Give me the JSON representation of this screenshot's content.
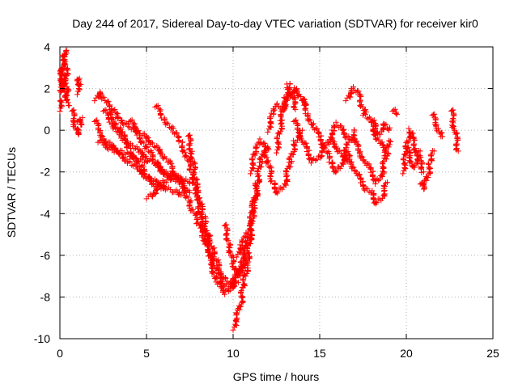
{
  "chart_data": {
    "type": "scatter",
    "title": "Day 244 of 2017, Sidereal Day-to-day VTEC variation (SDTVAR) for receiver kir0",
    "xlabel": "GPS time / hours",
    "ylabel": "SDTVAR / TECUs",
    "xlim": [
      0,
      25
    ],
    "ylim": [
      -10,
      4
    ],
    "xticks": [
      0,
      5,
      10,
      15,
      20,
      25
    ],
    "yticks": [
      -10,
      -8,
      -6,
      -4,
      -2,
      0,
      2,
      4
    ],
    "grid": true,
    "marker": "+",
    "color": "#ff0000",
    "series": [
      {
        "name": "SDTVAR",
        "tracks": [
          {
            "x": [
              0.0,
              0.1,
              0.2,
              0.3,
              0.35,
              0.4,
              0.5
            ],
            "y": [
              1.0,
              2.5,
              3.5,
              3.8,
              3.2,
              2.0,
              1.2
            ]
          },
          {
            "x": [
              0.0,
              0.1,
              0.2,
              0.3,
              0.4
            ],
            "y": [
              2.0,
              3.0,
              2.8,
              1.8,
              1.5
            ]
          },
          {
            "x": [
              0.7,
              0.8,
              0.9,
              1.0,
              1.1
            ],
            "y": [
              1.0,
              0.5,
              0.2,
              -0.2,
              0.0
            ]
          },
          {
            "x": [
              1.0,
              1.1,
              1.2
            ],
            "y": [
              1.8,
              2.5,
              2.2
            ]
          },
          {
            "x": [
              1.0,
              1.2,
              1.3
            ],
            "y": [
              0.5,
              0.3,
              0.6
            ]
          },
          {
            "x": [
              2.0,
              2.3,
              2.6,
              2.9,
              3.2,
              3.6,
              4.0,
              4.5,
              5.0,
              5.5,
              6.0,
              6.5,
              7.0,
              7.5
            ],
            "y": [
              1.5,
              1.8,
              1.5,
              1.0,
              0.3,
              -0.2,
              -0.6,
              -1.0,
              -1.3,
              -1.6,
              -2.0,
              -2.3,
              -2.6,
              -3.0
            ]
          },
          {
            "x": [
              2.0,
              2.3,
              2.6,
              3.0,
              3.5,
              4.0,
              4.5,
              5.0
            ],
            "y": [
              0.5,
              0.0,
              -0.5,
              -0.8,
              -1.0,
              -1.2,
              -1.4,
              -1.5
            ]
          },
          {
            "x": [
              2.2,
              2.6,
              3.0,
              3.5,
              4.0,
              4.5,
              5.0,
              5.5,
              6.0,
              6.5,
              7.0
            ],
            "y": [
              -0.5,
              -0.7,
              -0.9,
              -1.2,
              -1.5,
              -1.9,
              -2.2,
              -2.5,
              -2.7,
              -2.9,
              -3.1
            ]
          },
          {
            "x": [
              2.5,
              3.0,
              3.5,
              4.0,
              4.5,
              5.0,
              5.5,
              6.0
            ],
            "y": [
              1.0,
              0.4,
              -0.3,
              -0.9,
              -1.5,
              -2.2,
              -2.6,
              -2.8
            ]
          },
          {
            "x": [
              3.0,
              3.5,
              4.0,
              4.5,
              5.0,
              5.5,
              6.0,
              6.5,
              7.0,
              7.5
            ],
            "y": [
              1.0,
              0.5,
              0.2,
              -0.2,
              -0.8,
              -1.5,
              -2.0,
              -2.2,
              -2.3,
              -2.5
            ]
          },
          {
            "x": [
              4.0,
              4.3,
              4.6,
              5.0,
              5.3,
              5.6,
              6.0,
              6.3,
              6.6,
              7.0,
              7.5,
              8.0,
              8.5
            ],
            "y": [
              0.5,
              0.2,
              -0.1,
              -0.4,
              -0.6,
              -0.9,
              -1.2,
              -1.6,
              -2.0,
              -2.5,
              -3.5,
              -4.5,
              -5.5
            ]
          },
          {
            "x": [
              5.0,
              5.5,
              6.0,
              6.5
            ],
            "y": [
              -3.2,
              -3.0,
              -2.5,
              -2.2
            ]
          },
          {
            "x": [
              5.5,
              6.0,
              6.5,
              7.0,
              7.3,
              7.6,
              8.0,
              8.3,
              8.6,
              9.0,
              9.3,
              9.6,
              10.0,
              10.3
            ],
            "y": [
              1.2,
              0.6,
              0.0,
              -0.6,
              -1.2,
              -2.0,
              -3.2,
              -4.2,
              -5.2,
              -6.2,
              -6.8,
              -7.2,
              -7.5,
              -7.3
            ]
          },
          {
            "x": [
              7.4,
              7.6,
              7.8,
              8.0,
              8.2,
              8.5,
              8.8,
              9.1,
              9.4,
              9.7,
              10.0,
              10.3,
              10.6
            ],
            "y": [
              -0.2,
              -1.0,
              -2.2,
              -3.5,
              -4.5,
              -5.5,
              -6.3,
              -6.9,
              -7.3,
              -7.5,
              -7.4,
              -7.0,
              -6.5
            ]
          },
          {
            "x": [
              8.5,
              8.8,
              9.0,
              9.3,
              9.6,
              9.9,
              10.2,
              10.5,
              10.8,
              11.0
            ],
            "y": [
              -5.0,
              -6.5,
              -7.2,
              -7.6,
              -7.8,
              -7.5,
              -7.0,
              -6.2,
              -5.5,
              -5.0
            ]
          },
          {
            "x": [
              9.5,
              9.8,
              10.0,
              10.2,
              10.4,
              10.6,
              10.8
            ],
            "y": [
              -4.5,
              -5.5,
              -6.5,
              -7.0,
              -6.8,
              -6.2,
              -5.5
            ]
          },
          {
            "x": [
              10.0,
              10.2,
              10.4,
              10.6,
              10.8,
              11.0,
              11.2,
              11.4,
              11.6,
              11.8,
              12.0
            ],
            "y": [
              -9.5,
              -9.0,
              -8.5,
              -7.5,
              -6.5,
              -5.0,
              -3.5,
              -2.5,
              -1.5,
              -1.0,
              -0.8
            ]
          },
          {
            "x": [
              10.2,
              10.5,
              10.8,
              11.0,
              11.2,
              11.5
            ],
            "y": [
              -6.0,
              -5.5,
              -5.0,
              -4.5,
              -3.5,
              -2.5
            ]
          },
          {
            "x": [
              11.0,
              11.3,
              11.6,
              11.8,
              12.0,
              12.3,
              12.6,
              13.0,
              13.3,
              13.6,
              14.0
            ],
            "y": [
              -2.0,
              -1.0,
              -0.5,
              -0.8,
              -1.5,
              -2.5,
              -3.0,
              -2.5,
              -1.5,
              -0.5,
              0.0
            ]
          },
          {
            "x": [
              12.0,
              12.3,
              12.6,
              12.9,
              13.2,
              13.5,
              13.8,
              14.1
            ],
            "y": [
              0.0,
              0.8,
              1.2,
              1.0,
              1.5,
              2.0,
              1.8,
              1.2
            ]
          },
          {
            "x": [
              12.5,
              12.8,
              13.0,
              13.2,
              13.4,
              13.6
            ],
            "y": [
              -1.0,
              0.5,
              1.5,
              2.2,
              1.8,
              1.0
            ]
          },
          {
            "x": [
              13.5,
              13.8,
              14.0,
              14.3,
              14.6,
              15.0,
              15.3,
              15.6,
              16.0,
              16.3,
              16.6
            ],
            "y": [
              0.5,
              0.0,
              -0.5,
              -1.0,
              -1.5,
              -1.2,
              -0.8,
              -0.5,
              -0.8,
              -1.2,
              -1.5
            ]
          },
          {
            "x": [
              14.0,
              14.3,
              14.6,
              15.0,
              15.3,
              15.6,
              16.0,
              16.3,
              16.6,
              17.0
            ],
            "y": [
              1.5,
              0.8,
              0.2,
              -0.3,
              -0.8,
              -1.5,
              -2.0,
              -1.5,
              -0.8,
              0.0
            ]
          },
          {
            "x": [
              15.5,
              15.8,
              16.0,
              16.3,
              16.6,
              17.0
            ],
            "y": [
              -0.5,
              0.0,
              0.3,
              0.0,
              -0.3,
              -0.5
            ]
          },
          {
            "x": [
              16.5,
              16.8,
              17.0,
              17.3,
              17.6,
              18.0,
              18.3,
              18.6,
              18.8
            ],
            "y": [
              1.5,
              1.8,
              2.0,
              1.6,
              0.8,
              0.3,
              -0.3,
              -0.8,
              -1.2
            ]
          },
          {
            "x": [
              16.5,
              16.8,
              17.1,
              17.4,
              17.7,
              18.0,
              18.3,
              18.6,
              18.9
            ],
            "y": [
              -1.0,
              -1.5,
              -2.0,
              -2.5,
              -2.8,
              -3.0,
              -3.5,
              -3.2,
              -2.5
            ]
          },
          {
            "x": [
              17.0,
              17.3,
              17.6,
              18.0,
              18.3,
              18.6,
              18.9,
              19.0
            ],
            "y": [
              -0.5,
              -1.0,
              -1.5,
              -2.0,
              -2.5,
              -2.0,
              -1.0,
              -0.5
            ]
          },
          {
            "x": [
              18.0,
              18.2,
              18.4,
              18.6,
              18.8,
              19.0
            ],
            "y": [
              0.5,
              0.2,
              -0.2,
              0.0,
              0.3,
              0.0
            ]
          },
          {
            "x": [
              19.2,
              19.4
            ],
            "y": [
              1.0,
              0.8
            ]
          },
          {
            "x": [
              19.8,
              20.0,
              20.2,
              20.4,
              20.6,
              20.8,
              21.0
            ],
            "y": [
              -2.0,
              -1.0,
              0.0,
              -0.5,
              -1.0,
              -1.5,
              -2.0
            ]
          },
          {
            "x": [
              20.0,
              20.2,
              20.4,
              20.6,
              20.8
            ],
            "y": [
              -0.8,
              -1.2,
              -1.8,
              -1.5,
              -1.0
            ]
          },
          {
            "x": [
              20.8,
              21.0,
              21.2,
              21.4,
              21.6
            ],
            "y": [
              -2.5,
              -2.8,
              -2.3,
              -1.5,
              -1.0
            ]
          },
          {
            "x": [
              21.5,
              21.7,
              21.9,
              22.0
            ],
            "y": [
              0.8,
              0.3,
              0.0,
              -0.3
            ]
          },
          {
            "x": [
              22.6,
              22.7,
              22.8,
              22.9,
              23.0
            ],
            "y": [
              1.0,
              0.5,
              0.0,
              -0.5,
              -1.0
            ]
          }
        ]
      }
    ]
  }
}
